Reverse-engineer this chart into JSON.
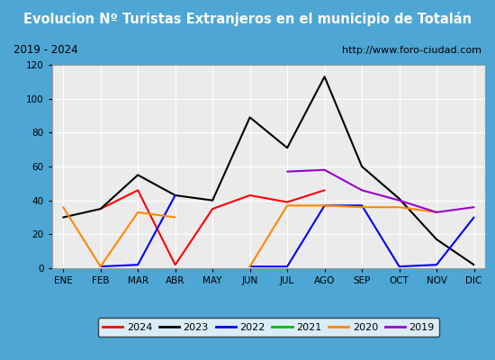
{
  "title": "Evolucion Nº Turistas Extranjeros en el municipio de Totalán",
  "subtitle_left": "2019 - 2024",
  "subtitle_right": "http://www.foro-ciudad.com",
  "months": [
    "ENE",
    "FEB",
    "MAR",
    "ABR",
    "MAY",
    "JUN",
    "JUL",
    "AGO",
    "SEP",
    "OCT",
    "NOV",
    "DIC"
  ],
  "series": {
    "2024": {
      "color": "#ff0000",
      "data": [
        null,
        35,
        46,
        2,
        35,
        43,
        39,
        46,
        null,
        null,
        null,
        null
      ]
    },
    "2023": {
      "color": "#000000",
      "data": [
        30,
        35,
        55,
        43,
        40,
        89,
        71,
        113,
        60,
        41,
        17,
        2
      ]
    },
    "2022": {
      "color": "#0000ff",
      "data": [
        null,
        1,
        2,
        43,
        null,
        1,
        1,
        37,
        37,
        1,
        2,
        30
      ]
    },
    "2021": {
      "color": "#00bb00",
      "data": [
        null,
        null,
        null,
        null,
        null,
        null,
        null,
        null,
        null,
        null,
        null,
        null
      ]
    },
    "2020": {
      "color": "#ff8800",
      "data": [
        36,
        1,
        33,
        30,
        null,
        1,
        37,
        37,
        36,
        36,
        33,
        null
      ]
    },
    "2019": {
      "color": "#9900cc",
      "data": [
        null,
        null,
        null,
        null,
        null,
        null,
        57,
        58,
        46,
        40,
        33,
        36
      ]
    }
  },
  "ylim": [
    0,
    120
  ],
  "yticks": [
    0,
    20,
    40,
    60,
    80,
    100,
    120
  ],
  "title_bg_color": "#4da6d4",
  "title_text_color": "#ffffff",
  "subtitle_bg_color": "#e0e0e0",
  "plot_bg_color": "#ebebeb",
  "grid_color": "#ffffff",
  "outer_bg_color": "#4da6d4",
  "legend_order": [
    "2024",
    "2023",
    "2022",
    "2021",
    "2020",
    "2019"
  ]
}
